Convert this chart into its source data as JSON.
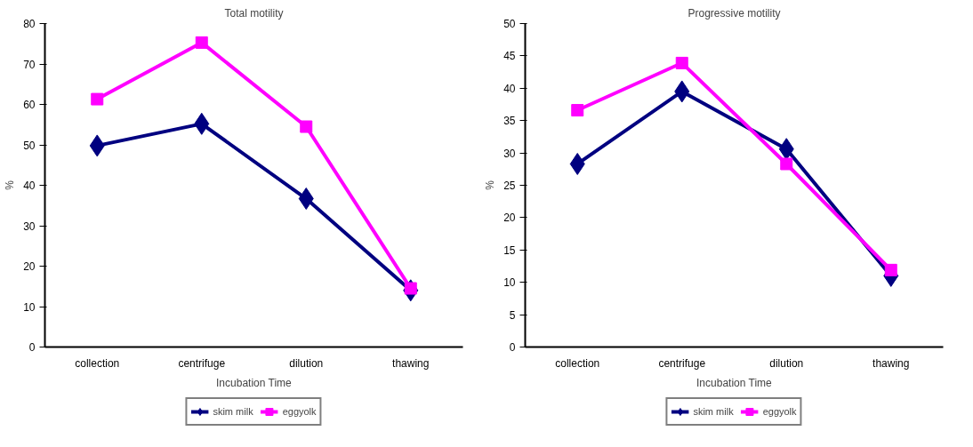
{
  "chart_data": [
    {
      "type": "line",
      "title": "Total motility",
      "xlabel": "Incubation Time",
      "ylabel": "%",
      "categories": [
        "collection",
        "centrifuge",
        "dilution",
        "thawing"
      ],
      "ylim": [
        0,
        80
      ],
      "yticks": [
        0,
        10,
        20,
        30,
        40,
        50,
        60,
        70,
        80
      ],
      "grid": false,
      "legend": "bottom",
      "series": [
        {
          "name": "skim milk",
          "color": "#000080",
          "marker": "diamond",
          "values": [
            49.8,
            55.2,
            36.7,
            14
          ]
        },
        {
          "name": "eggyolk",
          "color": "#ff00ff",
          "marker": "square",
          "values": [
            61.3,
            75.3,
            54.5,
            14.5
          ]
        }
      ]
    },
    {
      "type": "line",
      "title": "Progressive motility",
      "xlabel": "Incubation Time",
      "ylabel": "%",
      "categories": [
        "collection",
        "centrifuge",
        "dilution",
        "thawing"
      ],
      "ylim": [
        0,
        50
      ],
      "yticks": [
        0,
        5,
        10,
        15,
        20,
        25,
        30,
        35,
        40,
        45,
        50
      ],
      "grid": false,
      "legend": "bottom",
      "series": [
        {
          "name": "skim milk",
          "color": "#000080",
          "marker": "diamond",
          "values": [
            28.3,
            39.5,
            30.6,
            11
          ]
        },
        {
          "name": "eggyolk",
          "color": "#ff00ff",
          "marker": "square",
          "values": [
            36.6,
            43.9,
            28.3,
            11.9
          ]
        }
      ]
    }
  ]
}
